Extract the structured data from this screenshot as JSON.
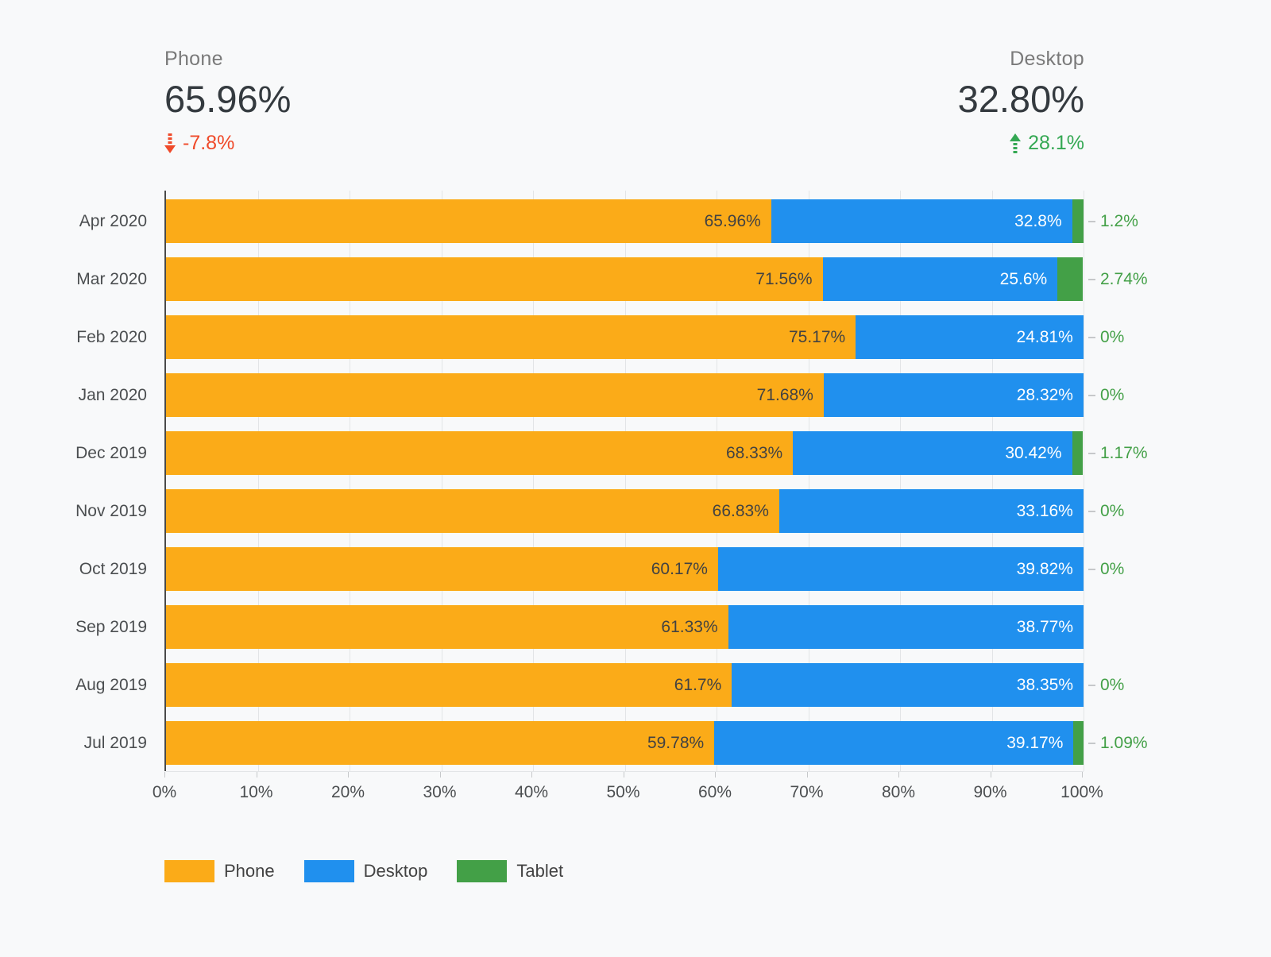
{
  "scorecards": {
    "phone": {
      "label": "Phone",
      "value": "65.96%",
      "delta": "-7.8%",
      "direction": "down",
      "delta_color": "#EF4A2A"
    },
    "desktop": {
      "label": "Desktop",
      "value": "32.80%",
      "delta": "28.1%",
      "direction": "up",
      "delta_color": "#34A853"
    }
  },
  "chart_data": {
    "type": "bar",
    "orientation": "horizontal",
    "stacked": true,
    "title": "",
    "xlabel": "",
    "ylabel": "",
    "xlim": [
      0,
      100
    ],
    "grid": true,
    "legend_position": "bottom",
    "categories": [
      "Apr 2020",
      "Mar 2020",
      "Feb 2020",
      "Jan 2020",
      "Dec 2019",
      "Nov 2019",
      "Oct 2019",
      "Sep 2019",
      "Aug 2019",
      "Jul 2019"
    ],
    "series": [
      {
        "name": "Phone",
        "color": "#FBAB18",
        "label_style": "inside-dark",
        "values": [
          65.96,
          71.56,
          75.17,
          71.68,
          68.33,
          66.83,
          60.17,
          61.33,
          61.7,
          59.78
        ],
        "labels": [
          "65.96%",
          "71.56%",
          "75.17%",
          "71.68%",
          "68.33%",
          "66.83%",
          "60.17%",
          "61.33%",
          "61.7%",
          "59.78%"
        ]
      },
      {
        "name": "Desktop",
        "color": "#2090EE",
        "label_style": "inside-white",
        "values": [
          32.8,
          25.6,
          24.81,
          28.32,
          30.42,
          33.16,
          39.82,
          38.77,
          38.35,
          39.17
        ],
        "labels": [
          "32.8%",
          "25.6%",
          "24.81%",
          "28.32%",
          "30.42%",
          "33.16%",
          "39.82%",
          "38.77%",
          "38.35%",
          "39.17%"
        ]
      },
      {
        "name": "Tablet",
        "color": "#43A047",
        "label_style": "outside-green",
        "values": [
          1.2,
          2.74,
          0,
          0,
          1.17,
          0,
          0,
          0,
          0,
          1.09
        ],
        "labels": [
          "1.2%",
          "2.74%",
          "0%",
          "0%",
          "1.17%",
          "0%",
          "0%",
          null,
          "0%",
          "1.09%"
        ]
      }
    ],
    "x_ticks": [
      "0%",
      "10%",
      "20%",
      "30%",
      "40%",
      "50%",
      "60%",
      "70%",
      "80%",
      "90%",
      "100%"
    ],
    "legend": [
      {
        "label": "Phone",
        "color": "#FBAB18"
      },
      {
        "label": "Desktop",
        "color": "#2090EE"
      },
      {
        "label": "Tablet",
        "color": "#43A047"
      }
    ]
  }
}
